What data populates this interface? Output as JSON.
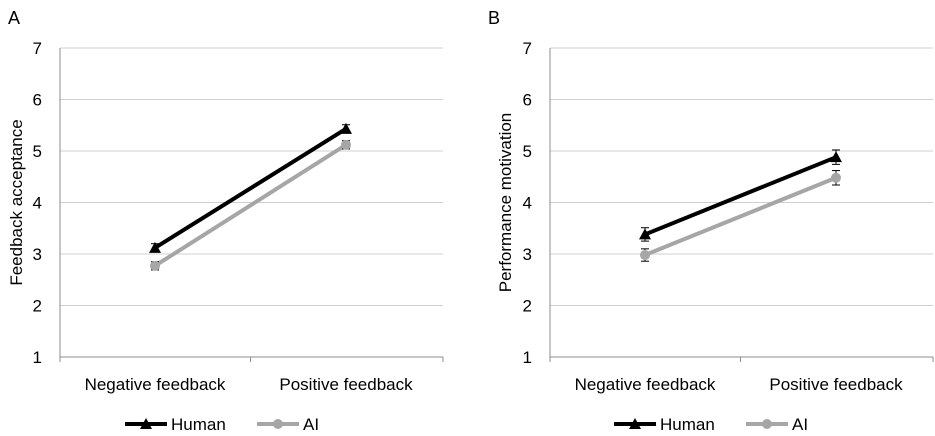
{
  "chart_data": [
    {
      "panel_label": "A",
      "type": "line",
      "title": "",
      "xlabel": "",
      "ylabel": "Feedback acceptance",
      "categories": [
        "Negative feedback",
        "Positive feedback"
      ],
      "ylim": [
        1,
        7
      ],
      "yticks": [
        1,
        2,
        3,
        4,
        5,
        6,
        7
      ],
      "grid": true,
      "legend": "bottom",
      "series": [
        {
          "name": "Human",
          "marker": "triangle",
          "color": "#000000",
          "values": [
            3.12,
            5.43
          ],
          "errors": [
            0.08,
            0.08
          ]
        },
        {
          "name": "AI",
          "marker": "circle",
          "color": "#a6a6a6",
          "values": [
            2.77,
            5.12
          ],
          "errors": [
            0.08,
            0.08
          ]
        }
      ]
    },
    {
      "panel_label": "B",
      "type": "line",
      "title": "",
      "xlabel": "",
      "ylabel": "Performance motivation",
      "categories": [
        "Negative feedback",
        "Positive feedback"
      ],
      "ylim": [
        1,
        7
      ],
      "yticks": [
        1,
        2,
        3,
        4,
        5,
        6,
        7
      ],
      "grid": true,
      "legend": "bottom",
      "series": [
        {
          "name": "Human",
          "marker": "triangle",
          "color": "#000000",
          "values": [
            3.38,
            4.88
          ],
          "errors": [
            0.13,
            0.14
          ]
        },
        {
          "name": "AI",
          "marker": "circle",
          "color": "#a6a6a6",
          "values": [
            2.98,
            4.48
          ],
          "errors": [
            0.12,
            0.14
          ]
        }
      ]
    }
  ]
}
